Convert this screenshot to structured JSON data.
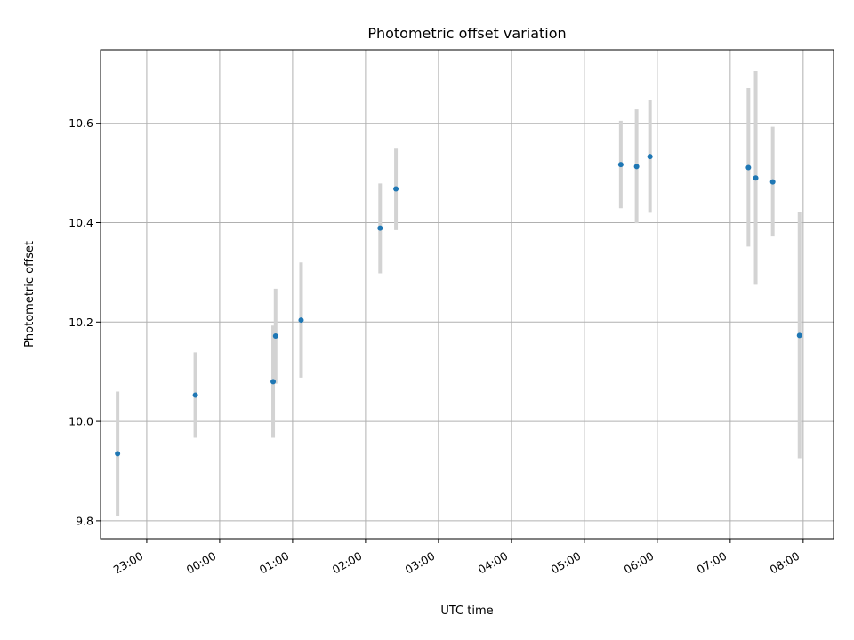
{
  "chart_data": {
    "type": "scatter",
    "title": "Photometric offset variation",
    "xlabel": "UTC time",
    "ylabel": "Photometric offset",
    "grid": true,
    "legend": "none",
    "x_unit": "UTC time",
    "xlim": [
      "22:22",
      "08:25"
    ],
    "ylim": [
      9.764,
      10.748
    ],
    "x_ticks": [
      "23:00",
      "00:00",
      "01:00",
      "02:00",
      "03:00",
      "04:00",
      "05:00",
      "06:00",
      "07:00",
      "08:00"
    ],
    "y_ticks": [
      "9.8",
      "10.0",
      "10.2",
      "10.4",
      "10.6"
    ],
    "points": [
      {
        "x": "22:36",
        "y": 9.935,
        "err_low": 9.81,
        "err_high": 10.06
      },
      {
        "x": "23:40",
        "y": 10.053,
        "err_low": 9.967,
        "err_high": 10.139
      },
      {
        "x": "00:44",
        "y": 10.08,
        "err_low": 9.967,
        "err_high": 10.193
      },
      {
        "x": "00:46",
        "y": 10.172,
        "err_low": 10.076,
        "err_high": 10.267
      },
      {
        "x": "01:07",
        "y": 10.204,
        "err_low": 10.088,
        "err_high": 10.32
      },
      {
        "x": "02:12",
        "y": 10.389,
        "err_low": 10.298,
        "err_high": 10.479
      },
      {
        "x": "02:25",
        "y": 10.468,
        "err_low": 10.385,
        "err_high": 10.549
      },
      {
        "x": "05:30",
        "y": 10.517,
        "err_low": 10.429,
        "err_high": 10.605
      },
      {
        "x": "05:43",
        "y": 10.513,
        "err_low": 10.399,
        "err_high": 10.628
      },
      {
        "x": "05:54",
        "y": 10.533,
        "err_low": 10.42,
        "err_high": 10.646
      },
      {
        "x": "07:15",
        "y": 10.511,
        "err_low": 10.352,
        "err_high": 10.671
      },
      {
        "x": "07:21",
        "y": 10.49,
        "err_low": 10.275,
        "err_high": 10.705
      },
      {
        "x": "07:35",
        "y": 10.482,
        "err_low": 10.372,
        "err_high": 10.593
      },
      {
        "x": "07:57",
        "y": 10.173,
        "err_low": 9.926,
        "err_high": 10.421
      }
    ],
    "colors": {
      "point": "#1f77b4",
      "error_bar": "#d3d3d3",
      "grid": "#b0b0b0",
      "axes": "#000000"
    }
  }
}
